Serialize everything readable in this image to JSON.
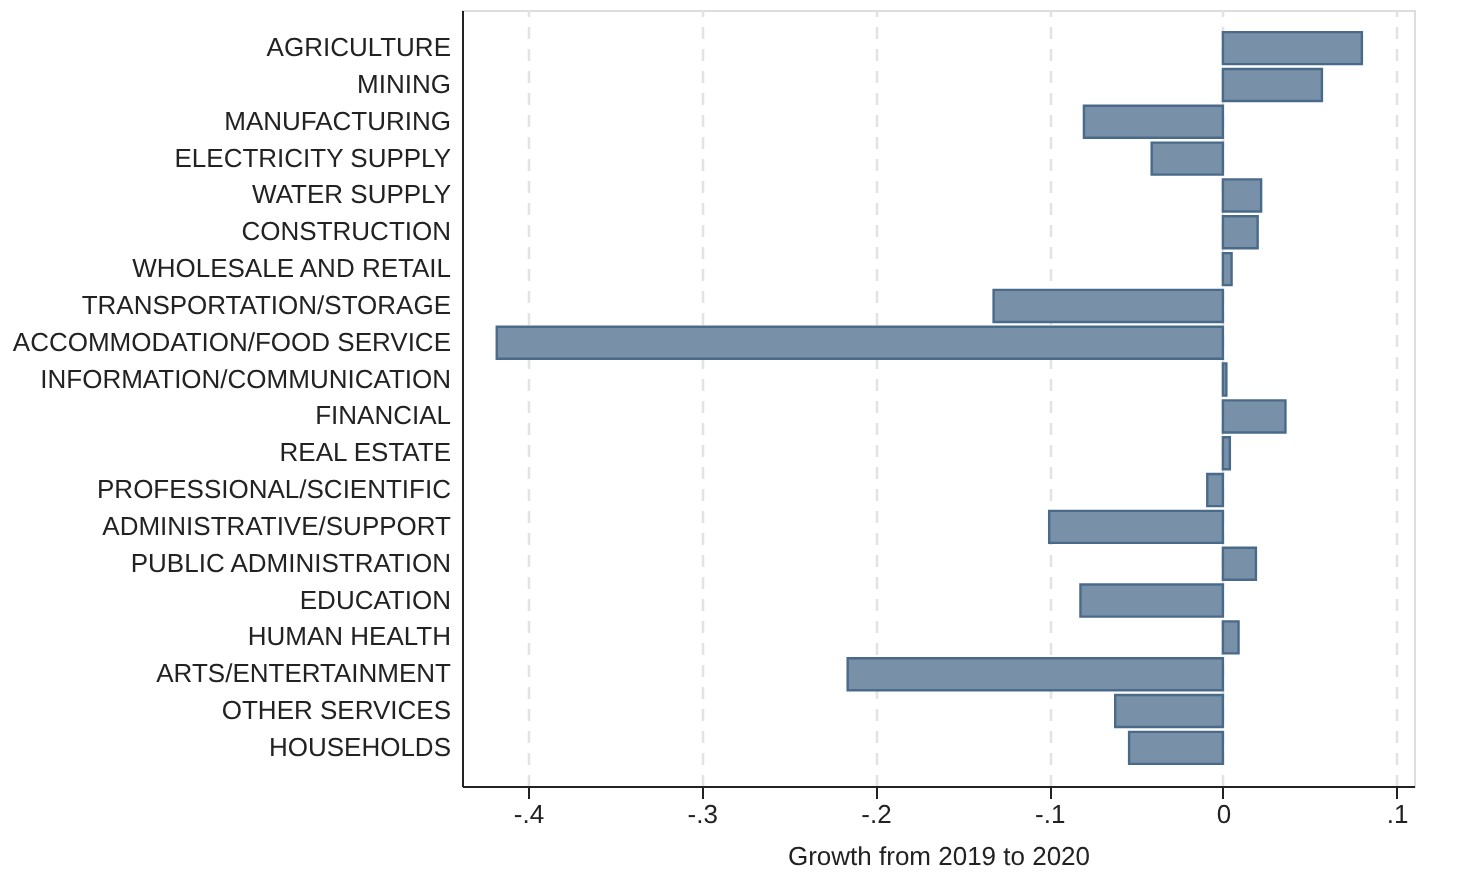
{
  "chart_data": {
    "type": "bar",
    "orientation": "horizontal",
    "xlabel": "Growth from 2019 to 2020",
    "categories": [
      "AGRICULTURE",
      "MINING",
      "MANUFACTURING",
      "ELECTRICITY SUPPLY",
      "WATER SUPPLY",
      "CONSTRUCTION",
      "WHOLESALE AND RETAIL",
      "TRANSPORTATION/STORAGE",
      "ACCOMMODATION/FOOD SERVICE",
      "INFORMATION/COMMUNICATION",
      "FINANCIAL",
      "REAL ESTATE",
      "PROFESSIONAL/SCIENTIFIC",
      "ADMINISTRATIVE/SUPPORT",
      "PUBLIC ADMINISTRATION",
      "EDUCATION",
      "HUMAN HEALTH",
      "ARTS/ENTERTAINMENT",
      "OTHER SERVICES",
      "HOUSEHOLDS"
    ],
    "values": [
      0.08,
      0.057,
      -0.08,
      -0.041,
      0.022,
      0.02,
      0.005,
      -0.132,
      -0.418,
      0.002,
      0.036,
      0.004,
      -0.009,
      -0.1,
      0.019,
      -0.082,
      0.009,
      -0.216,
      -0.062,
      -0.054
    ],
    "color": "#7890a8",
    "xlim": [
      -0.438,
      0.11
    ],
    "xticks": [
      {
        "value": -0.4,
        "label": "-.4"
      },
      {
        "value": -0.3,
        "label": "-.3"
      },
      {
        "value": -0.2,
        "label": "-.2"
      },
      {
        "value": -0.1,
        "label": "-.1"
      },
      0,
      {
        "value": 0.1,
        "label": ".1"
      }
    ],
    "grid": "x"
  }
}
